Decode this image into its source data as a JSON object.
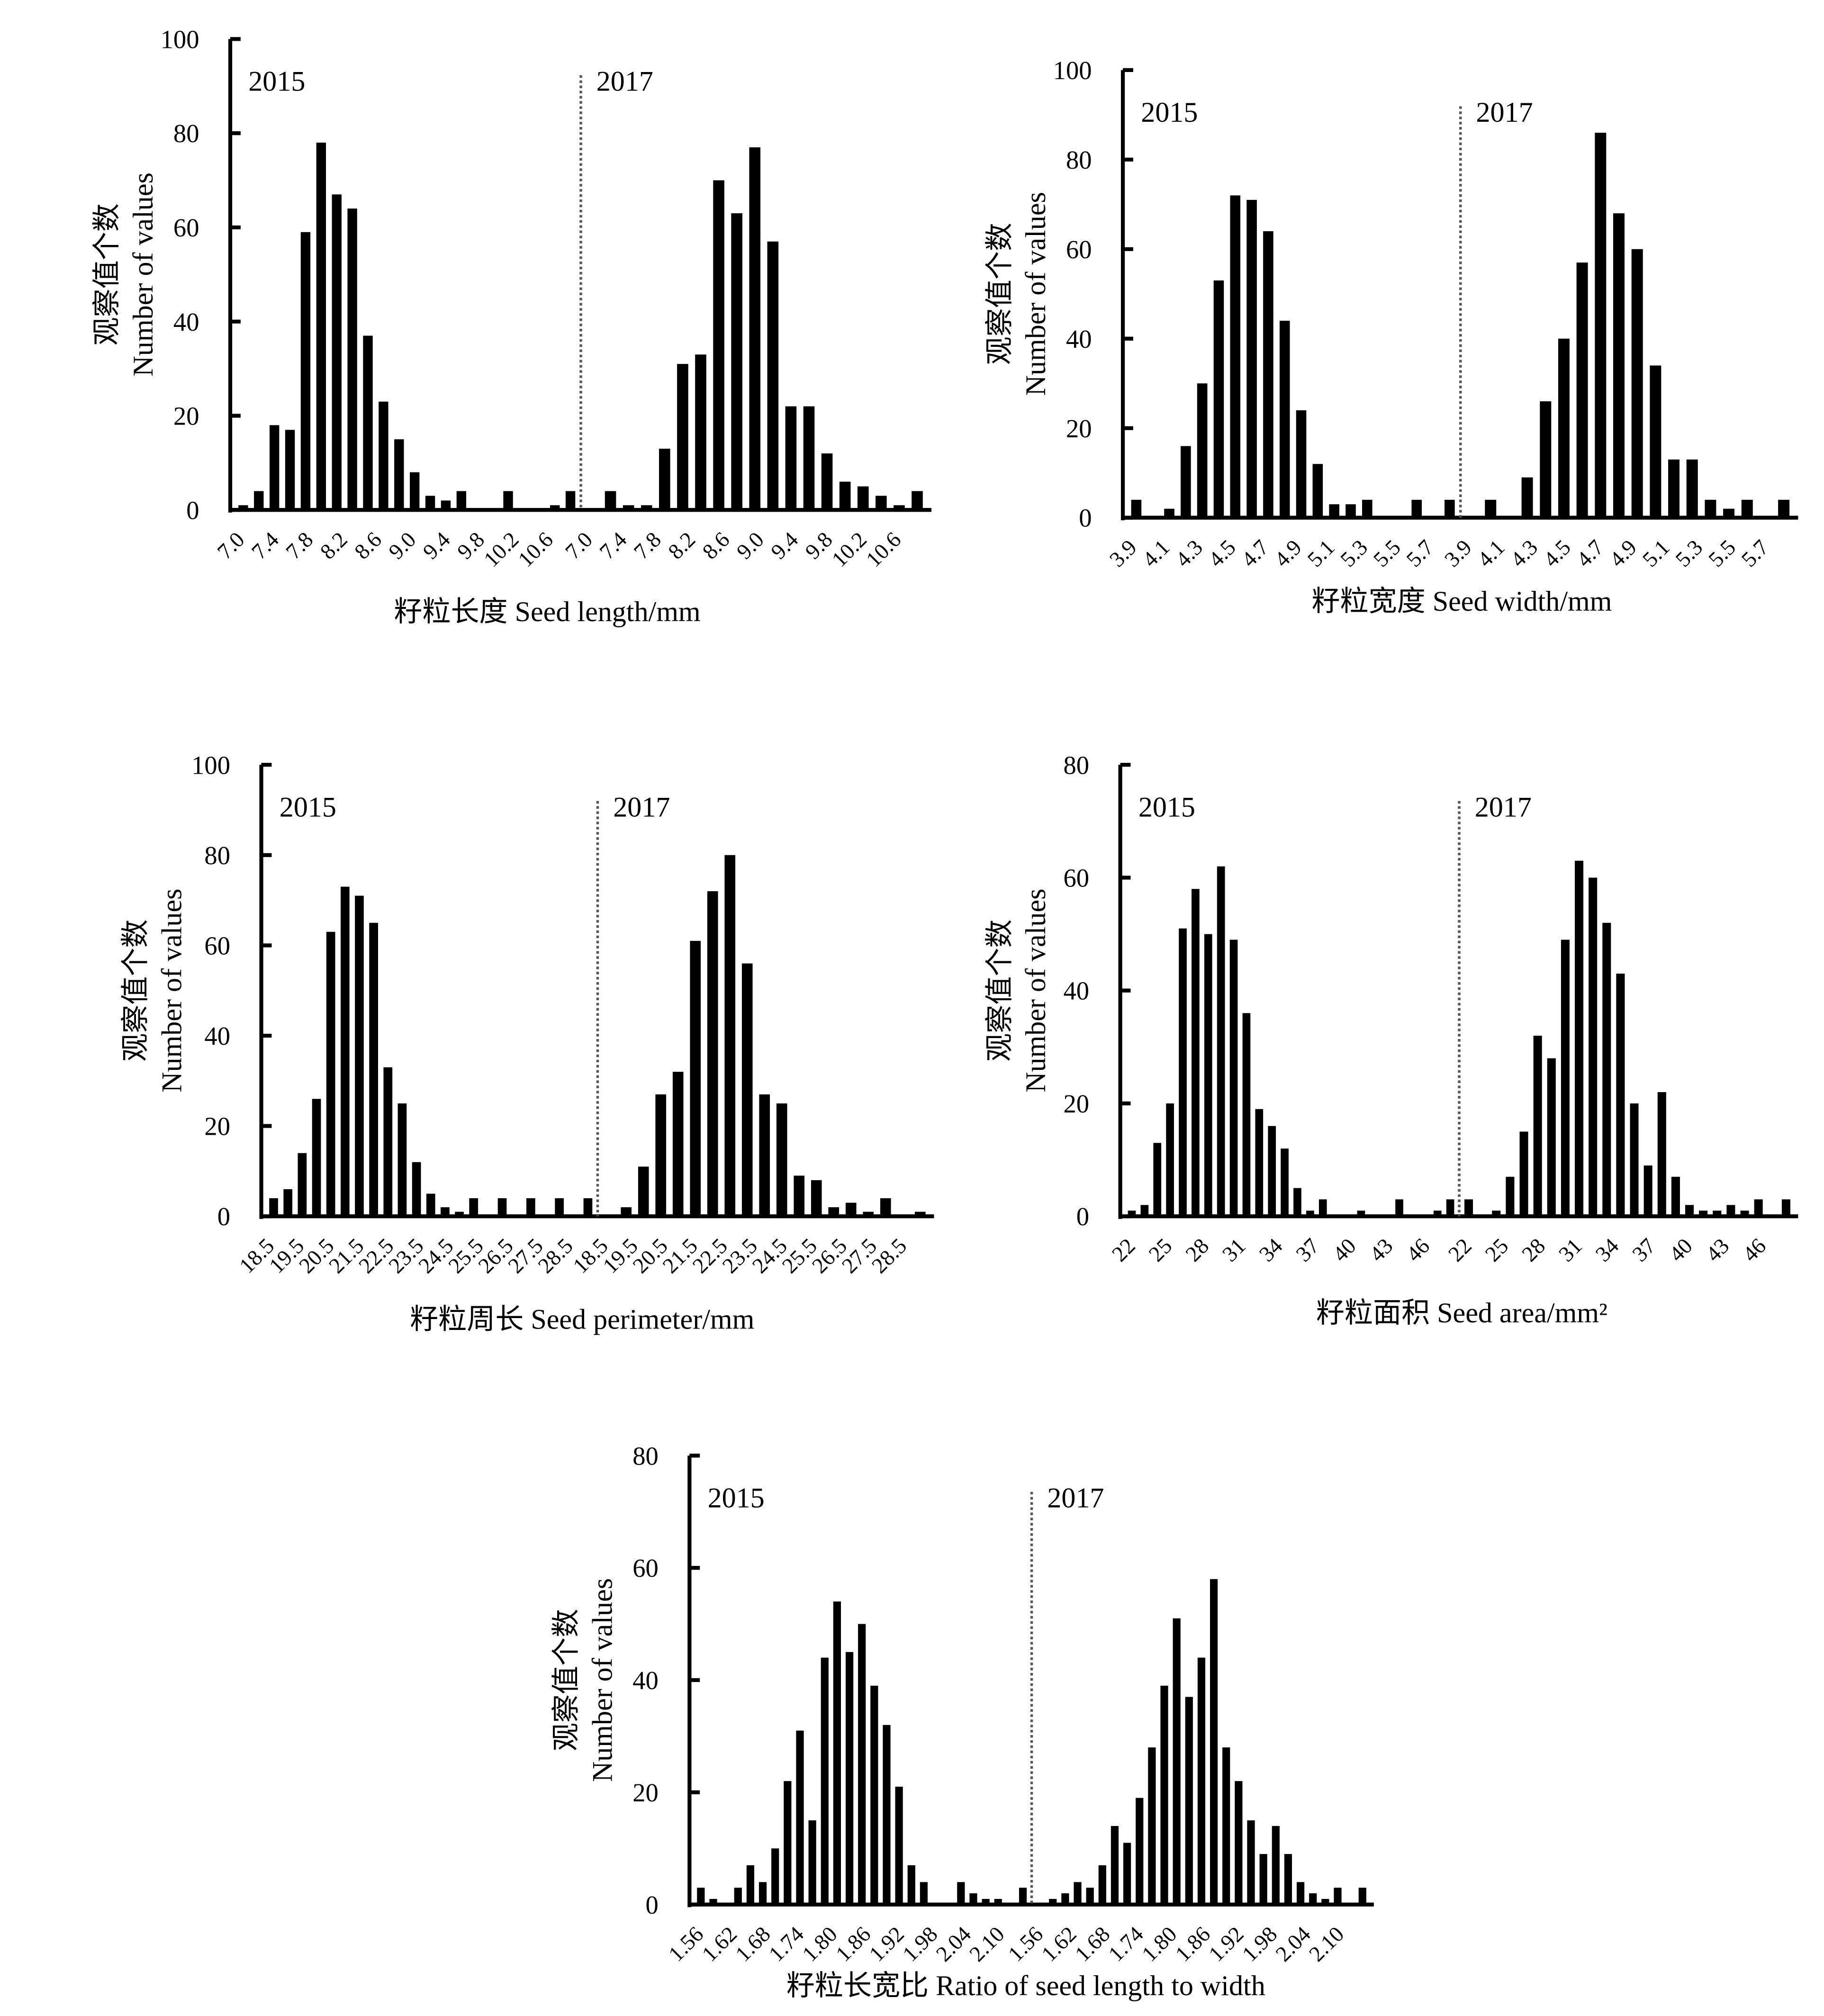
{
  "chart_data": [
    {
      "type": "bar",
      "title": "",
      "xlabel": "籽粒长度  Seed length/mm",
      "ylabel_cn": "观察值个数",
      "ylabel": "Number of values",
      "ylim": [
        0,
        100
      ],
      "yticks": [
        "0",
        "20",
        "40",
        "60",
        "80",
        "100"
      ],
      "series": [
        {
          "name": "2015",
          "ticks": [
            "7.0",
            "7.4",
            "7.8",
            "8.2",
            "8.6",
            "9.0",
            "9.4",
            "9.8",
            "10.2",
            "10.6"
          ],
          "values": [
            1,
            4,
            18,
            17,
            59,
            78,
            67,
            64,
            37,
            23,
            15,
            8,
            3,
            2,
            4,
            0,
            0,
            4,
            0,
            0,
            1,
            4
          ]
        },
        {
          "name": "2017",
          "ticks": [
            "7.0",
            "7.4",
            "7.8",
            "8.2",
            "8.6",
            "9.0",
            "9.4",
            "9.8",
            "10.2",
            "10.6"
          ],
          "values": [
            0,
            4,
            1,
            1,
            13,
            31,
            33,
            70,
            63,
            77,
            57,
            22,
            22,
            12,
            6,
            5,
            3,
            1,
            4
          ]
        }
      ]
    },
    {
      "type": "bar",
      "title": "",
      "xlabel": "籽粒宽度  Seed width/mm",
      "ylabel_cn": "观察值个数",
      "ylabel": "Number of values",
      "ylim": [
        0,
        100
      ],
      "yticks": [
        "0",
        "20",
        "40",
        "60",
        "80",
        "100"
      ],
      "series": [
        {
          "name": "2015",
          "ticks": [
            "3.9",
            "4.1",
            "4.3",
            "4.5",
            "4.7",
            "4.9",
            "5.1",
            "5.3",
            "5.5",
            "5.7"
          ],
          "values": [
            4,
            0,
            2,
            16,
            30,
            53,
            72,
            71,
            64,
            44,
            24,
            12,
            3,
            3,
            4,
            0,
            0,
            4,
            0,
            4
          ]
        },
        {
          "name": "2017",
          "ticks": [
            "3.9",
            "4.1",
            "4.3",
            "4.5",
            "4.7",
            "4.9",
            "5.1",
            "5.3",
            "5.5",
            "5.7"
          ],
          "values": [
            0,
            4,
            0,
            9,
            26,
            40,
            57,
            86,
            68,
            60,
            34,
            13,
            13,
            4,
            2,
            4,
            0,
            4
          ]
        }
      ]
    },
    {
      "type": "bar",
      "title": "",
      "xlabel": "籽粒周长  Seed perimeter/mm",
      "ylabel_cn": "观察值个数",
      "ylabel": "Number of values",
      "ylim": [
        0,
        100
      ],
      "yticks": [
        "0",
        "20",
        "40",
        "60",
        "80",
        "100"
      ],
      "series": [
        {
          "name": "2015",
          "ticks": [
            "18.5",
            "19.5",
            "20.5",
            "21.5",
            "22.5",
            "23.5",
            "24.5",
            "25.5",
            "26.5",
            "27.5",
            "28.5"
          ],
          "values": [
            4,
            6,
            14,
            26,
            63,
            73,
            71,
            65,
            33,
            25,
            12,
            5,
            2,
            1,
            4,
            0,
            4,
            0,
            4,
            0,
            4,
            0,
            4
          ]
        },
        {
          "name": "2017",
          "ticks": [
            "18.5",
            "19.5",
            "20.5",
            "21.5",
            "22.5",
            "23.5",
            "24.5",
            "25.5",
            "26.5",
            "27.5",
            "28.5"
          ],
          "values": [
            0,
            2,
            11,
            27,
            32,
            61,
            72,
            80,
            56,
            27,
            25,
            9,
            8,
            2,
            3,
            1,
            4,
            0,
            1
          ]
        }
      ]
    },
    {
      "type": "bar",
      "title": "",
      "xlabel": "籽粒面积  Seed area/mm²",
      "ylabel_cn": "观察值个数",
      "ylabel": "Number of values",
      "ylim": [
        0,
        80
      ],
      "yticks": [
        "0",
        "20",
        "40",
        "60",
        "80"
      ],
      "series": [
        {
          "name": "2015",
          "ticks": [
            "22",
            "25",
            "28",
            "31",
            "34",
            "37",
            "40",
            "43",
            "46"
          ],
          "values": [
            1,
            2,
            13,
            20,
            51,
            58,
            50,
            62,
            49,
            36,
            19,
            16,
            12,
            5,
            1,
            3,
            0,
            0,
            1,
            0,
            0,
            3,
            0,
            0,
            1,
            3
          ]
        },
        {
          "name": "2017",
          "ticks": [
            "22",
            "25",
            "28",
            "31",
            "34",
            "37",
            "40",
            "43",
            "46"
          ],
          "values": [
            3,
            0,
            1,
            7,
            15,
            32,
            28,
            49,
            63,
            60,
            52,
            43,
            20,
            9,
            22,
            7,
            2,
            1,
            1,
            2,
            1,
            3,
            0,
            3
          ]
        }
      ]
    },
    {
      "type": "bar",
      "title": "",
      "xlabel": "籽粒长宽比  Ratio of seed length to width",
      "ylabel_cn": "观察值个数",
      "ylabel": "Number of values",
      "ylim": [
        0,
        80
      ],
      "yticks": [
        "0",
        "20",
        "40",
        "60",
        "80"
      ],
      "series": [
        {
          "name": "2015",
          "ticks": [
            "1.56",
            "1.62",
            "1.68",
            "1.74",
            "1.80",
            "1.86",
            "1.92",
            "1.98",
            "2.04",
            "2.10"
          ],
          "values": [
            3,
            1,
            0,
            3,
            7,
            4,
            10,
            22,
            31,
            15,
            44,
            54,
            45,
            50,
            39,
            32,
            21,
            7,
            4,
            0,
            0,
            4,
            2,
            1,
            1,
            0,
            3
          ]
        },
        {
          "name": "2017",
          "ticks": [
            "1.56",
            "1.62",
            "1.68",
            "1.74",
            "1.80",
            "1.86",
            "1.92",
            "1.98",
            "2.04",
            "2.10"
          ],
          "values": [
            0,
            1,
            2,
            4,
            3,
            7,
            14,
            11,
            19,
            28,
            39,
            51,
            37,
            44,
            58,
            28,
            22,
            15,
            9,
            14,
            9,
            4,
            2,
            1,
            3,
            0,
            3
          ]
        }
      ]
    }
  ]
}
